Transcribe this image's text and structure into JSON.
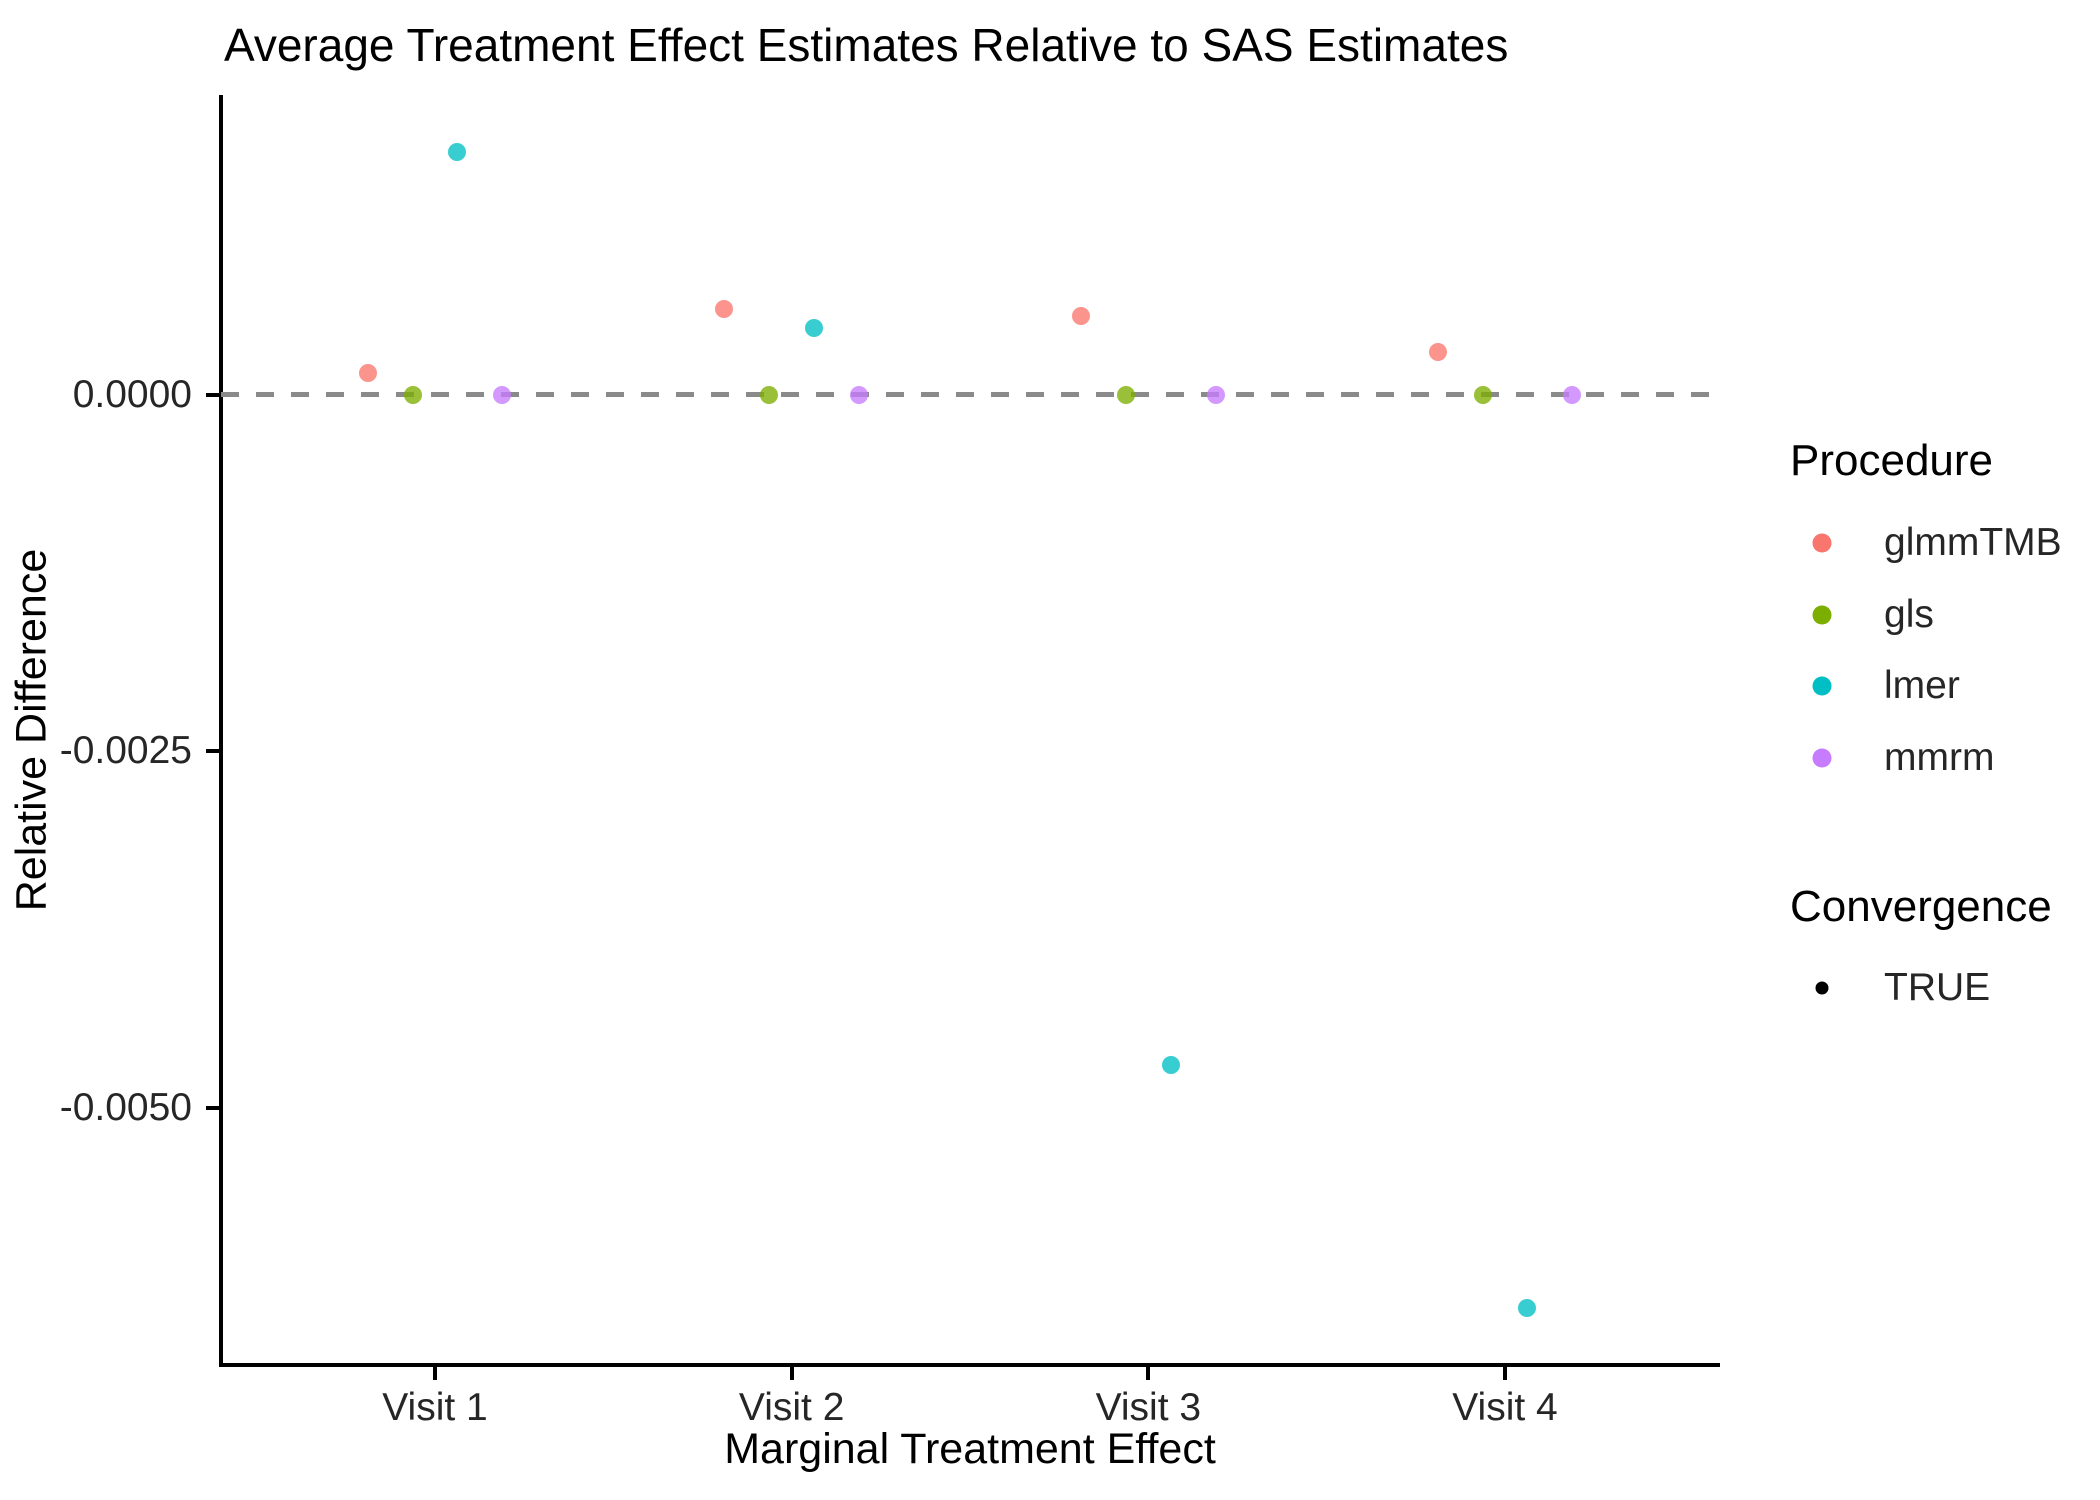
{
  "chart_data": {
    "type": "scatter",
    "title": "Average Treatment Effect Estimates Relative to SAS Estimates",
    "xlabel": "Marginal Treatment Effect",
    "ylabel": "Relative Difference",
    "categories": [
      "Visit 1",
      "Visit 2",
      "Visit 3",
      "Visit 4"
    ],
    "series": [
      {
        "name": "glmmTMB",
        "color": "#F8766D",
        "values": [
          0.00015,
          0.0006,
          0.00055,
          0.0003
        ]
      },
      {
        "name": "gls",
        "color": "#7CAE00",
        "values": [
          0.0,
          0.0,
          0.0,
          0.0
        ]
      },
      {
        "name": "lmer",
        "color": "#00BFC4",
        "values": [
          0.0017,
          0.00047,
          -0.0047,
          -0.0064
        ]
      },
      {
        "name": "mmrm",
        "color": "#C77CFF",
        "values": [
          0.0,
          0.0,
          0.0,
          0.0
        ]
      }
    ],
    "ylim": [
      -0.0068,
      0.0021
    ],
    "yticks": [
      {
        "value": 0.0,
        "label": "0.0000"
      },
      {
        "value": -0.0025,
        "label": "-0.0025"
      },
      {
        "value": -0.005,
        "label": "-0.0050"
      }
    ],
    "reference_line": {
      "y": 0.0,
      "style": "dashed",
      "color": "#8A8A8A"
    },
    "grid": false,
    "legend_position": "right"
  },
  "legend": {
    "procedure": {
      "title": "Procedure",
      "items": [
        {
          "label": "glmmTMB",
          "color": "#F8766D"
        },
        {
          "label": "gls",
          "color": "#7CAE00"
        },
        {
          "label": "lmer",
          "color": "#00BFC4"
        },
        {
          "label": "mmrm",
          "color": "#C77CFF"
        }
      ]
    },
    "convergence": {
      "title": "Convergence",
      "items": [
        {
          "label": "TRUE",
          "color": "#000000"
        }
      ]
    }
  }
}
